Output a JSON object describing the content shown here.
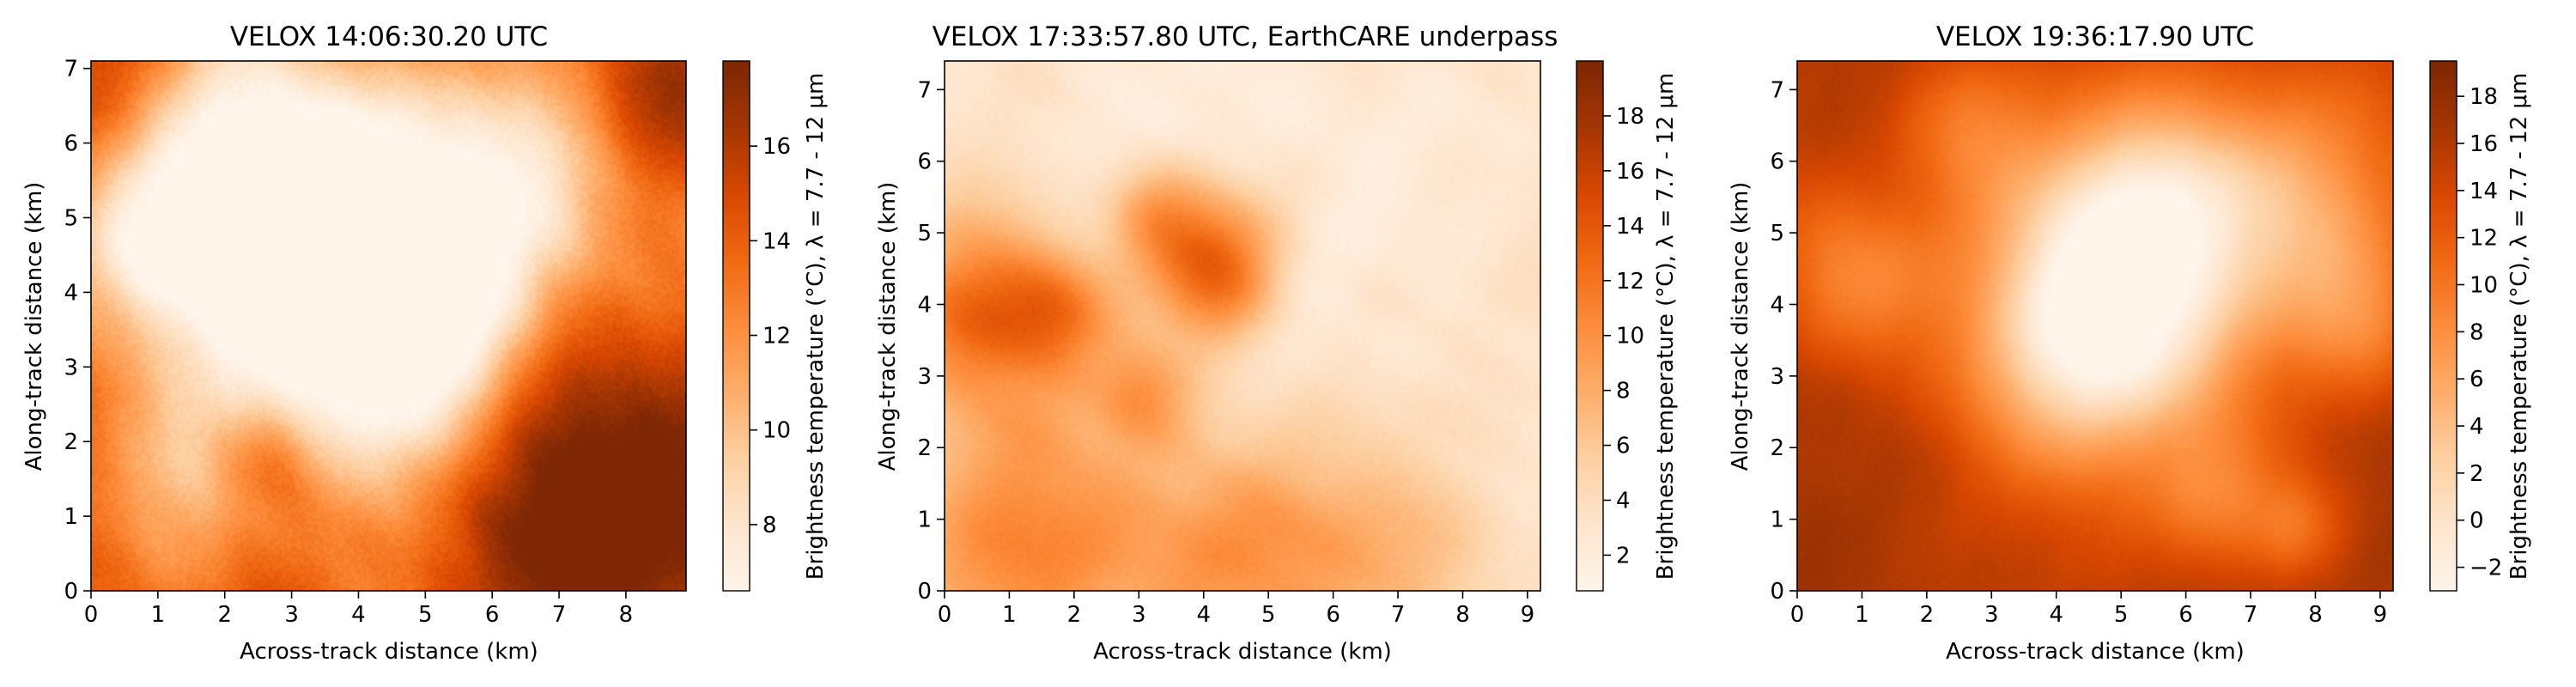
{
  "colormap": {
    "name": "Oranges",
    "stops": [
      "#fff5eb",
      "#fee6ce",
      "#fdd0a2",
      "#fdae6b",
      "#fd8d3c",
      "#f16913",
      "#d94801",
      "#a63603",
      "#7f2704"
    ]
  },
  "chart_data": [
    {
      "type": "heatmap",
      "title": "VELOX 14:06:30.20 UTC",
      "xlabel": "Across-track distance (km)",
      "ylabel": "Along-track distance (km)",
      "xlim": [
        0,
        8.9
      ],
      "ylim": [
        0,
        7.1
      ],
      "xticks": [
        0,
        1,
        2,
        3,
        4,
        5,
        6,
        7,
        8
      ],
      "yticks": [
        0,
        1,
        2,
        3,
        4,
        5,
        6,
        7
      ],
      "colorbar": {
        "label": "Brightness temperature (°C), λ = 7.7 - 12 μm",
        "range": [
          6.6,
          17.8
        ],
        "ticks": [
          8,
          10,
          12,
          14,
          16
        ]
      },
      "scene": {
        "seed": 11,
        "description_free": true,
        "blobs": [
          [
            2.0,
            6.0,
            1.3,
            -0.55
          ],
          [
            4.0,
            5.3,
            1.2,
            -0.6
          ],
          [
            3.2,
            3.0,
            1.2,
            -0.55
          ],
          [
            1.0,
            4.5,
            0.9,
            -0.45
          ],
          [
            5.5,
            4.0,
            1.0,
            -0.45
          ],
          [
            6.2,
            5.9,
            1.0,
            -0.5
          ],
          [
            5.0,
            2.6,
            1.0,
            -0.35
          ],
          [
            1.2,
            1.5,
            0.9,
            -0.3
          ],
          [
            7.8,
            4.5,
            0.9,
            -0.25
          ],
          [
            7.5,
            1.0,
            1.6,
            0.55
          ],
          [
            8.5,
            6.8,
            0.8,
            0.35
          ],
          [
            0.2,
            6.9,
            1.0,
            0.3
          ],
          [
            2.6,
            1.8,
            0.6,
            0.35
          ]
        ],
        "base": 0.62,
        "texture": 0.18
      }
    },
    {
      "type": "heatmap",
      "title": "VELOX 17:33:57.80 UTC, EarthCARE underpass",
      "xlabel": "Across-track distance (km)",
      "ylabel": "Along-track distance (km)",
      "xlim": [
        0,
        9.2
      ],
      "ylim": [
        0,
        7.4
      ],
      "xticks": [
        0,
        1,
        2,
        3,
        4,
        5,
        6,
        7,
        8,
        9
      ],
      "yticks": [
        0,
        1,
        2,
        3,
        4,
        5,
        6,
        7
      ],
      "colorbar": {
        "label": "Brightness temperature (°C), λ = 7.7 - 12 μm",
        "range": [
          0.7,
          20.0
        ],
        "ticks": [
          2,
          4,
          6,
          8,
          10,
          12,
          14,
          16,
          18
        ]
      },
      "scene": {
        "seed": 23,
        "blobs": [
          [
            4.1,
            4.6,
            0.7,
            0.55
          ],
          [
            0.5,
            3.9,
            0.9,
            0.45
          ],
          [
            1.7,
            3.9,
            0.6,
            0.3
          ],
          [
            3.0,
            2.8,
            0.5,
            0.25
          ],
          [
            1.2,
            0.5,
            1.4,
            0.4
          ],
          [
            4.5,
            0.5,
            1.2,
            0.3
          ],
          [
            7.0,
            0.3,
            1.2,
            0.25
          ],
          [
            3.2,
            5.3,
            0.5,
            0.2
          ]
        ],
        "base": 0.12,
        "texture": 0.09
      }
    },
    {
      "type": "heatmap",
      "title": "VELOX 19:36:17.90 UTC",
      "xlabel": "Across-track distance (km)",
      "ylabel": "Along-track distance (km)",
      "xlim": [
        0,
        9.2
      ],
      "ylim": [
        0,
        7.4
      ],
      "xticks": [
        0,
        1,
        2,
        3,
        4,
        5,
        6,
        7,
        8,
        9
      ],
      "yticks": [
        0,
        1,
        2,
        3,
        4,
        5,
        6,
        7
      ],
      "colorbar": {
        "label": "Brightness temperature (°C), λ = 7.7 - 12 μm",
        "range": [
          -3.0,
          19.5
        ],
        "ticks": [
          -2,
          0,
          2,
          4,
          6,
          8,
          10,
          12,
          14,
          16,
          18
        ]
      },
      "scene": {
        "seed": 37,
        "blobs": [
          [
            4.8,
            4.3,
            1.7,
            -0.75
          ],
          [
            4.5,
            3.3,
            1.0,
            -0.3
          ],
          [
            5.6,
            5.2,
            1.0,
            -0.3
          ],
          [
            7.9,
            5.6,
            1.2,
            -0.35
          ],
          [
            8.6,
            3.8,
            0.8,
            -0.25
          ],
          [
            0.7,
            4.4,
            0.9,
            -0.3
          ],
          [
            6.5,
            1.2,
            0.7,
            -0.25
          ],
          [
            2.5,
            6.6,
            0.8,
            -0.2
          ],
          [
            7.7,
            0.9,
            0.5,
            -0.2
          ]
        ],
        "base": 0.86,
        "texture": 0.06
      }
    }
  ]
}
